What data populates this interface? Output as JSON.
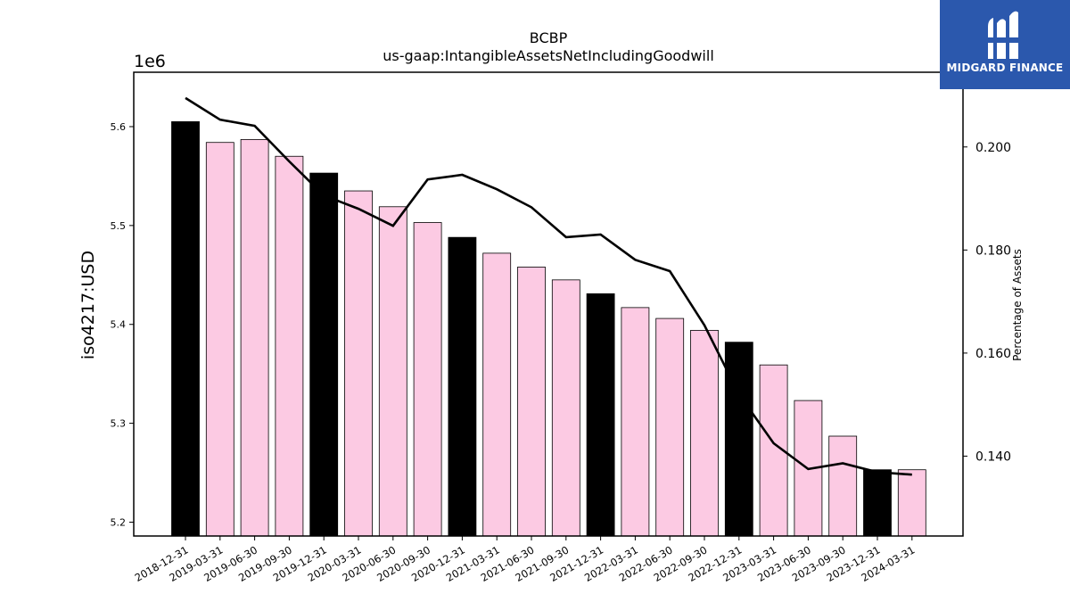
{
  "chart_data": {
    "type": "bar",
    "title": "BCBP",
    "subtitle": "us-gaap:IntangibleAssetsNetIncludingGoodwill",
    "ylabel": "iso4217:USD",
    "y_offset_label": "1e6",
    "y2label": "Percentage of Assets",
    "ylim": [
      5.186,
      5.655
    ],
    "y2lim": [
      0.1245,
      0.2145
    ],
    "yticks": [
      5.2,
      5.3,
      5.4,
      5.5,
      5.6
    ],
    "y2ticks": [
      0.14,
      0.16,
      0.18,
      0.2
    ],
    "ytick_labels": [
      "5.2",
      "5.3",
      "5.4",
      "5.5",
      "5.6"
    ],
    "y2tick_labels": [
      "0.140",
      "0.160",
      "0.180",
      "0.200"
    ],
    "categories": [
      "2018-12-31",
      "2019-03-31",
      "2019-06-30",
      "2019-09-30",
      "2019-12-31",
      "2020-03-31",
      "2020-06-30",
      "2020-09-30",
      "2020-12-31",
      "2021-03-31",
      "2021-06-30",
      "2021-09-30",
      "2021-12-31",
      "2022-03-31",
      "2022-06-30",
      "2022-09-30",
      "2022-12-31",
      "2023-03-31",
      "2023-06-30",
      "2023-09-30",
      "2023-12-31",
      "2024-03-31"
    ],
    "series": [
      {
        "kind": "bar",
        "axis": "left",
        "values": [
          5.605,
          5.584,
          5.587,
          5.57,
          5.553,
          5.535,
          5.519,
          5.503,
          5.488,
          5.472,
          5.458,
          5.445,
          5.431,
          5.417,
          5.406,
          5.394,
          5.382,
          5.359,
          5.323,
          5.287,
          5.253,
          5.253
        ],
        "colors": [
          "#000000",
          "#fccae3",
          "#fccae3",
          "#fccae3",
          "#000000",
          "#fccae3",
          "#fccae3",
          "#fccae3",
          "#000000",
          "#fccae3",
          "#fccae3",
          "#fccae3",
          "#000000",
          "#fccae3",
          "#fccae3",
          "#fccae3",
          "#000000",
          "#fccae3",
          "#fccae3",
          "#fccae3",
          "#000000",
          "#fccae3"
        ]
      },
      {
        "kind": "line",
        "axis": "right",
        "color": "#000000",
        "values": [
          0.2095,
          0.2053,
          0.2041,
          0.1972,
          0.1906,
          0.188,
          0.1847,
          0.1937,
          0.1946,
          0.1918,
          0.1883,
          0.1825,
          0.183,
          0.1781,
          0.1759,
          0.1654,
          0.152,
          0.1425,
          0.1375,
          0.1386,
          0.1369,
          0.1364
        ]
      }
    ],
    "grid": false,
    "legend": "none"
  },
  "brand": {
    "name": "MIDGARD FINANCE",
    "background": "#2b58ad"
  }
}
